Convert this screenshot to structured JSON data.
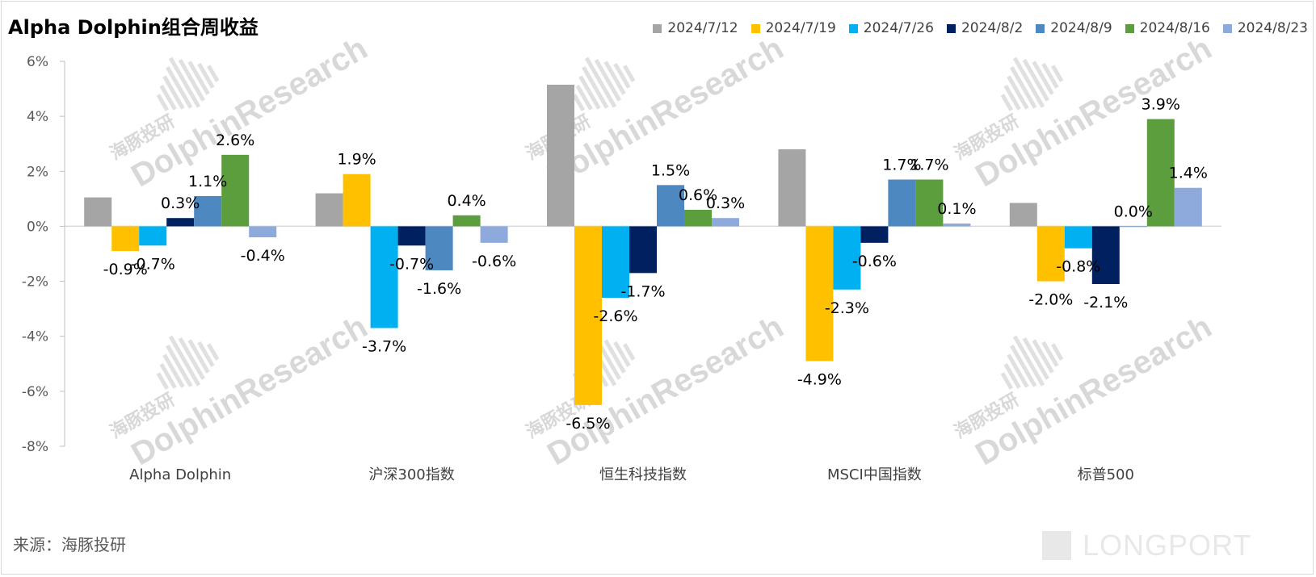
{
  "title": "Alpha Dolphin组合周收益",
  "source": "来源：海豚投研",
  "watermark": {
    "brand_en": "DolphinResearch",
    "brand_cn": "海豚投研",
    "corner": "LONGPORT"
  },
  "colors": {
    "2024/7/12": "#a5a5a5",
    "2024/7/19": "#ffc000",
    "2024/7/26": "#00b0f0",
    "2024/8/2": "#002060",
    "2024/8/9": "#4e88c0",
    "2024/8/16": "#5c9d3e",
    "2024/8/23": "#8ea9db"
  },
  "chart_data": {
    "type": "bar",
    "title": "Alpha Dolphin组合周收益",
    "categories": [
      "Alpha Dolphin",
      "沪深300指数",
      "恒生科技指数",
      "MSCI中国指数",
      "标普500"
    ],
    "ylim": [
      -8,
      6
    ],
    "yticks": [
      "6%",
      "4%",
      "2%",
      "0%",
      "-2%",
      "-4%",
      "-6%",
      "-8%"
    ],
    "legend_position": "top-right",
    "series": [
      {
        "name": "2024/7/12",
        "values": [
          1.05,
          1.2,
          5.15,
          2.8,
          0.85
        ],
        "labels": [
          "",
          "",
          "",
          "",
          ""
        ]
      },
      {
        "name": "2024/7/19",
        "values": [
          -0.9,
          1.9,
          -6.5,
          -4.9,
          -2.0
        ],
        "labels": [
          "-0.9%",
          "1.9%",
          "-6.5%",
          "-4.9%",
          "-2.0%"
        ]
      },
      {
        "name": "2024/7/26",
        "values": [
          -0.7,
          -3.7,
          -2.6,
          -2.3,
          -0.8
        ],
        "labels": [
          "-0.7%",
          "-3.7%",
          "-2.6%",
          "-2.3%",
          "-0.8%"
        ]
      },
      {
        "name": "2024/8/2",
        "values": [
          0.3,
          -0.7,
          -1.7,
          -0.6,
          -2.1
        ],
        "labels": [
          "0.3%",
          "-0.7%",
          "-1.7%",
          "-0.6%",
          "-2.1%"
        ]
      },
      {
        "name": "2024/8/9",
        "values": [
          1.1,
          -1.6,
          1.5,
          1.7,
          0.0
        ],
        "labels": [
          "1.1%",
          "-1.6%",
          "1.5%",
          "1.7%",
          "0.0%"
        ]
      },
      {
        "name": "2024/8/16",
        "values": [
          2.6,
          0.4,
          0.6,
          1.7,
          3.9
        ],
        "labels": [
          "2.6%",
          "0.4%",
          "0.6%",
          "1.7%",
          "3.9%"
        ]
      },
      {
        "name": "2024/8/23",
        "values": [
          -0.4,
          -0.6,
          0.3,
          0.1,
          1.4
        ],
        "labels": [
          "-0.4%",
          "-0.6%",
          "0.3%",
          "0.1%",
          "1.4%"
        ]
      }
    ]
  }
}
